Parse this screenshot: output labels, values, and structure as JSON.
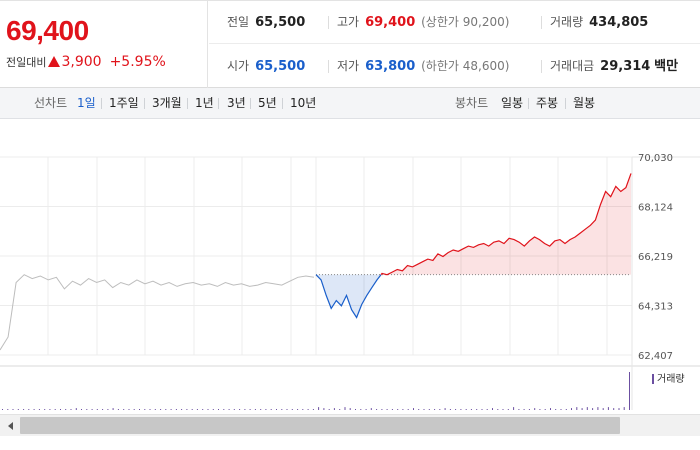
{
  "quote": {
    "price": "69,400",
    "change_label": "전일대비",
    "change_value": "3,900",
    "change_pct": "+5.95%",
    "prev_close": {
      "label": "전일",
      "value": "65,500"
    },
    "high": {
      "label": "고가",
      "value": "69,400",
      "sub_label": "상한가",
      "sub_value": "90,200"
    },
    "volume": {
      "label": "거래량",
      "value": "434,805"
    },
    "open": {
      "label": "시가",
      "value": "65,500"
    },
    "low": {
      "label": "저가",
      "value": "63,800",
      "sub_label": "하한가",
      "sub_value": "48,600"
    },
    "amount": {
      "label": "거래대금",
      "value": "29,314",
      "unit": "백만"
    }
  },
  "toolbar": {
    "line_label": "선차트",
    "periods": [
      "1일",
      "1주일",
      "3개월",
      "1년",
      "3년",
      "5년",
      "10년"
    ],
    "active_period": "1일",
    "candle_label": "봉차트",
    "candle_periods": [
      "일봉",
      "주봉",
      "월봉"
    ]
  },
  "colors": {
    "up": "#e0131b",
    "down": "#1a5fcb",
    "prev_day": "#bdbdbd",
    "volume": "#6b4fa1"
  },
  "chart_data": {
    "type": "line",
    "title": "",
    "y_tick_labels": [
      "70,030",
      "68,124",
      "66,219",
      "64,313",
      "62,407"
    ],
    "y_ticks": [
      70030,
      68124,
      66219,
      64313,
      62407
    ],
    "ylim": [
      62407,
      70030
    ],
    "reference_value": 65500,
    "volume_label": "거래량",
    "series": [
      {
        "values": [
          62600,
          63100,
          65200,
          65500,
          65350,
          65450,
          65300,
          65400,
          64950,
          65250,
          65100,
          65350,
          65200,
          65300,
          65000,
          65200,
          65100,
          65300,
          65150,
          65250,
          65100,
          65200,
          65050,
          65150,
          65200,
          65100,
          65150,
          65050,
          65200,
          65100,
          65150,
          65050,
          65100,
          65200,
          65150,
          65100,
          65250,
          65400,
          65450,
          65400
        ]
      },
      {
        "values": [
          65500,
          65300,
          64700,
          64200,
          64500,
          64300,
          64700,
          64150,
          63850,
          64350,
          64700,
          65000,
          65300,
          65550,
          65500,
          65600,
          65700,
          65650,
          65850,
          65800,
          65900,
          66000,
          66100,
          66050,
          66300,
          66200,
          66350,
          66450,
          66400,
          66500,
          66600,
          66550,
          66650,
          66700,
          66600,
          66750,
          66800,
          66700,
          66900,
          66850,
          66750,
          66600,
          66800,
          66950,
          66850,
          66700,
          66600,
          66800,
          66850,
          66700,
          66850,
          66950,
          67100,
          67250,
          67400,
          67600,
          68200,
          68700,
          68500,
          68900,
          68700,
          68850,
          69400
        ]
      }
    ],
    "volume": [
      1,
      1,
      1,
      1,
      1,
      1,
      1,
      1,
      1,
      1,
      1,
      1,
      1,
      1,
      2,
      1,
      1,
      1,
      1,
      1,
      1,
      2,
      1,
      1,
      1,
      1,
      1,
      1,
      1,
      1,
      1,
      1,
      1,
      1,
      1,
      1,
      1,
      1,
      1,
      1,
      1,
      1,
      1,
      1,
      1,
      1,
      1,
      1,
      1,
      1,
      1,
      1,
      1,
      1,
      1,
      1,
      1,
      1,
      1,
      1,
      3,
      2,
      1,
      2,
      1,
      3,
      2,
      1,
      1,
      1,
      2,
      1,
      1,
      1,
      1,
      1,
      1,
      1,
      2,
      1,
      1,
      1,
      1,
      1,
      2,
      1,
      1,
      1,
      1,
      1,
      1,
      1,
      1,
      2,
      1,
      1,
      1,
      3,
      1,
      1,
      1,
      2,
      1,
      1,
      2,
      1,
      1,
      1,
      2,
      3,
      2,
      3,
      2,
      3,
      2,
      3,
      2,
      2,
      3,
      40
    ]
  }
}
